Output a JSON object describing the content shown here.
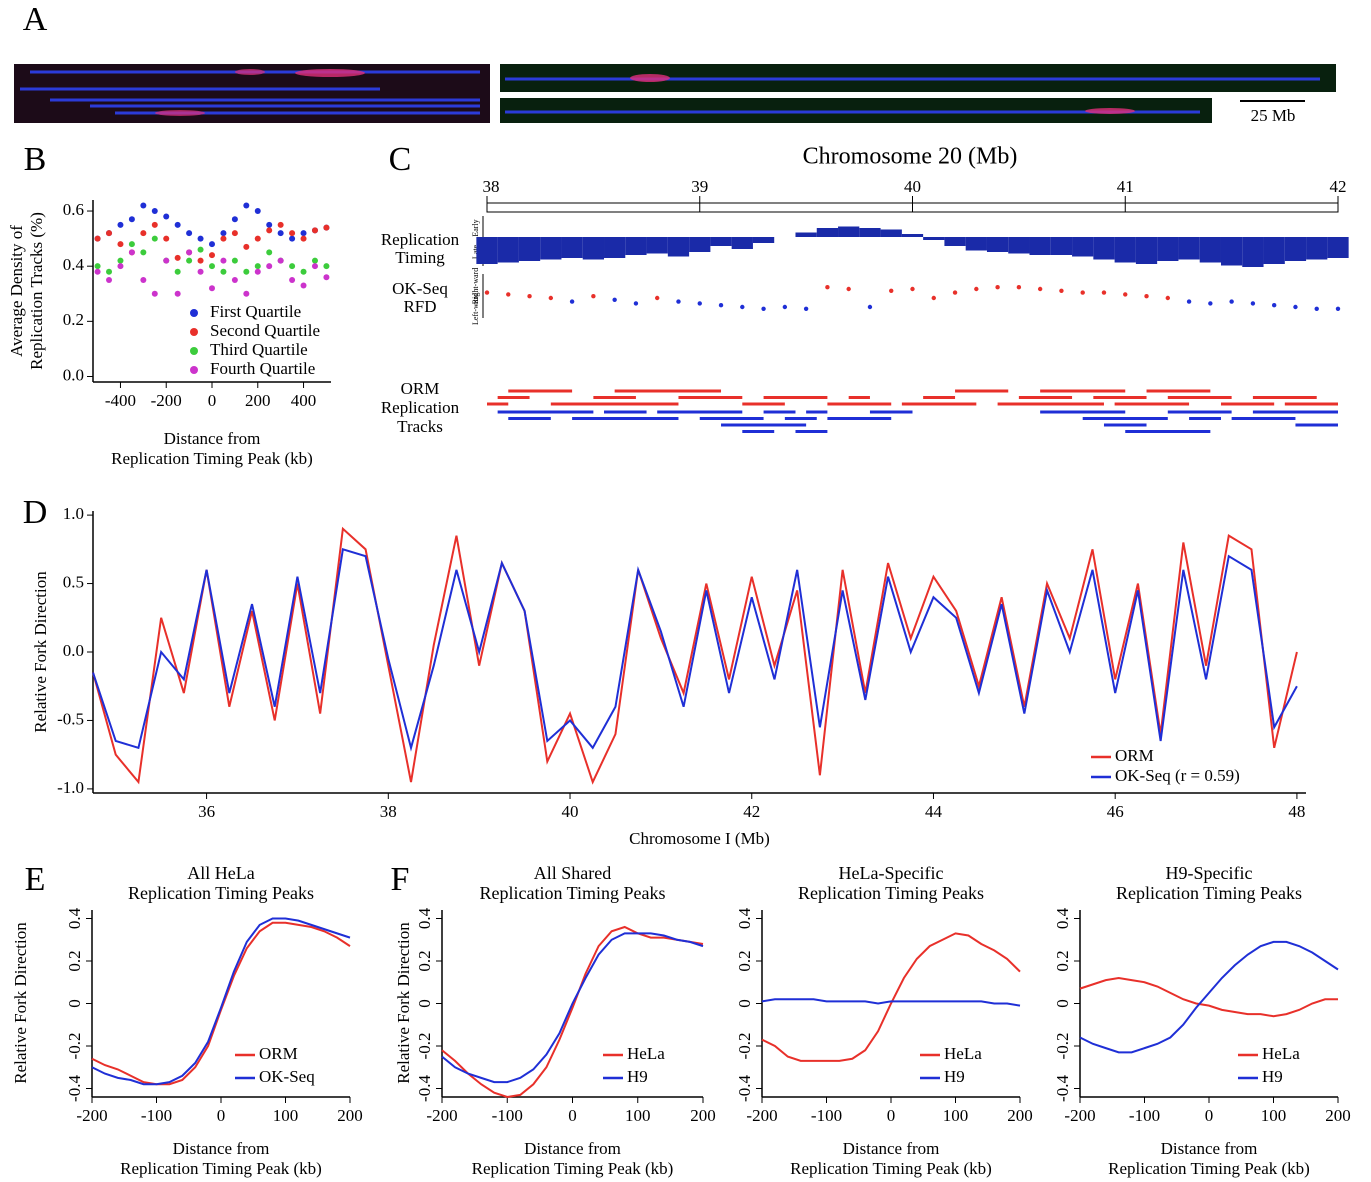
{
  "chart_data": [
    {
      "type": "image",
      "panel": "A",
      "scale_label": "25 Mb"
    },
    {
      "type": "scatter",
      "panel": "B",
      "ylabel": [
        "Average Density of",
        "Replication Tracks (%)"
      ],
      "xlabel": [
        "Distance from",
        "Replication Timing Peak (kb)"
      ],
      "x": [
        -500,
        -450,
        -400,
        -350,
        -300,
        -250,
        -200,
        -150,
        -100,
        -50,
        0,
        50,
        100,
        150,
        200,
        250,
        300,
        350,
        400,
        450,
        500
      ],
      "series": [
        {
          "name": "First Quartile",
          "color": "#1f2fd6",
          "values": [
            0.5,
            0.52,
            0.55,
            0.57,
            0.62,
            0.6,
            0.58,
            0.55,
            0.52,
            0.5,
            0.48,
            0.52,
            0.57,
            0.62,
            0.6,
            0.55,
            0.52,
            0.5,
            0.52,
            0.53,
            0.54
          ]
        },
        {
          "name": "Second Quartile",
          "color": "#e8302a",
          "values": [
            0.5,
            0.52,
            0.48,
            0.45,
            0.52,
            0.55,
            0.5,
            0.43,
            0.45,
            0.42,
            0.44,
            0.5,
            0.52,
            0.47,
            0.5,
            0.53,
            0.55,
            0.52,
            0.5,
            0.53,
            0.54
          ]
        },
        {
          "name": "Third Quartile",
          "color": "#3ccc3c",
          "values": [
            0.4,
            0.38,
            0.42,
            0.48,
            0.45,
            0.5,
            0.42,
            0.38,
            0.42,
            0.46,
            0.4,
            0.38,
            0.42,
            0.38,
            0.4,
            0.45,
            0.42,
            0.4,
            0.38,
            0.42,
            0.4
          ]
        },
        {
          "name": "Fourth Quartile",
          "color": "#cc33cc",
          "values": [
            0.38,
            0.35,
            0.4,
            0.45,
            0.35,
            0.3,
            0.42,
            0.3,
            0.45,
            0.38,
            0.32,
            0.42,
            0.35,
            0.3,
            0.38,
            0.4,
            0.42,
            0.35,
            0.33,
            0.4,
            0.36
          ]
        }
      ],
      "xlim": [
        -520,
        520
      ],
      "ylim": [
        -0.02,
        0.64
      ],
      "xticks": [
        -400,
        -200,
        0,
        200,
        400
      ],
      "yticks": [
        {
          "value": 0,
          "label": "0.0"
        },
        0.2,
        0.4,
        0.6
      ],
      "legend": "lower right"
    },
    {
      "type": "tracks",
      "panel": "C",
      "title": "Chromosome 20 (Mb)",
      "xlim": [
        38,
        42
      ],
      "xticks": [
        38,
        39,
        40,
        41,
        42
      ],
      "timing_label": [
        "Replication",
        "Timing"
      ],
      "timing_axis": [
        "Late",
        "Early"
      ],
      "rfd_label": [
        "OK-Seq",
        "RFD"
      ],
      "rfd_axis": [
        "Left-ward",
        "Right-ward"
      ],
      "orm_label": [
        "ORM",
        "Replication",
        "Tracks"
      ],
      "rightward_color": "#e8302a",
      "leftward_color": "#1f2fd6",
      "timing_color": "#1a2aa8",
      "x": [
        38,
        38.1,
        38.2,
        38.3,
        38.4,
        38.5,
        38.6,
        38.7,
        38.8,
        38.9,
        39,
        39.1,
        39.2,
        39.3,
        39.4,
        39.5,
        39.6,
        39.7,
        39.8,
        39.9,
        40,
        40.1,
        40.2,
        40.3,
        40.4,
        40.5,
        40.6,
        40.7,
        40.8,
        40.9,
        41,
        41.1,
        41.2,
        41.3,
        41.4,
        41.5,
        41.6,
        41.7,
        41.8,
        41.9,
        42
      ],
      "timing": [
        -0.9,
        -0.85,
        -0.8,
        -0.75,
        -0.7,
        -0.75,
        -0.7,
        -0.6,
        -0.55,
        -0.65,
        -0.5,
        -0.3,
        -0.4,
        -0.2,
        0.0,
        0.15,
        0.3,
        0.35,
        0.3,
        0.25,
        0.1,
        -0.1,
        -0.3,
        -0.45,
        -0.5,
        -0.55,
        -0.6,
        -0.6,
        -0.65,
        -0.75,
        -0.85,
        -0.9,
        -0.8,
        -0.75,
        -0.85,
        -0.95,
        -1.0,
        -0.9,
        -0.8,
        -0.75,
        -0.7
      ],
      "rfd": [
        0.3,
        0.2,
        0.1,
        0.0,
        -0.2,
        0.1,
        -0.1,
        -0.3,
        0.0,
        -0.2,
        -0.3,
        -0.4,
        -0.5,
        -0.6,
        -0.5,
        -0.6,
        0.6,
        0.5,
        -0.5,
        0.4,
        0.5,
        0.0,
        0.3,
        0.5,
        0.6,
        0.6,
        0.5,
        0.4,
        0.3,
        0.3,
        0.2,
        0.1,
        0.0,
        -0.2,
        -0.3,
        -0.2,
        -0.3,
        -0.4,
        -0.5,
        -0.6,
        -0.6
      ],
      "rightward": [
        [
          38.0,
          38.1
        ],
        [
          38.05,
          38.2
        ],
        [
          38.1,
          38.4
        ],
        [
          38.3,
          38.9
        ],
        [
          38.5,
          38.7
        ],
        [
          38.6,
          39.1
        ],
        [
          38.9,
          39.2
        ],
        [
          39.2,
          39.4
        ],
        [
          39.3,
          39.6
        ],
        [
          39.6,
          39.9
        ],
        [
          39.7,
          39.8
        ],
        [
          39.95,
          40.3
        ],
        [
          40.05,
          40.2
        ],
        [
          40.2,
          40.45
        ],
        [
          40.4,
          40.9
        ],
        [
          40.5,
          40.75
        ],
        [
          40.6,
          41.0
        ],
        [
          40.85,
          41.1
        ],
        [
          40.95,
          41.3
        ],
        [
          41.1,
          41.4
        ],
        [
          41.2,
          41.5
        ],
        [
          41.45,
          41.7
        ],
        [
          41.6,
          41.9
        ],
        [
          41.75,
          42.0
        ]
      ],
      "leftward": [
        [
          38.05,
          38.5
        ],
        [
          38.1,
          38.3
        ],
        [
          38.4,
          38.9
        ],
        [
          38.55,
          38.75
        ],
        [
          38.8,
          39.2
        ],
        [
          39.0,
          39.3
        ],
        [
          39.1,
          39.5
        ],
        [
          39.2,
          39.35
        ],
        [
          39.3,
          39.45
        ],
        [
          39.4,
          39.55
        ],
        [
          39.45,
          39.6
        ],
        [
          39.5,
          39.6
        ],
        [
          39.6,
          39.9
        ],
        [
          39.8,
          40.0
        ],
        [
          40.6,
          41.0
        ],
        [
          40.8,
          41.2
        ],
        [
          40.9,
          41.1
        ],
        [
          41.0,
          41.4
        ],
        [
          41.2,
          41.5
        ],
        [
          41.3,
          41.45
        ],
        [
          41.5,
          41.8
        ],
        [
          41.6,
          42.0
        ],
        [
          41.8,
          42.0
        ]
      ]
    },
    {
      "type": "line",
      "panel": "D",
      "ylabel": [
        "Relative Fork Direction"
      ],
      "xlabel": [
        "Chromosome I (Mb)"
      ],
      "x": [
        34.75,
        35,
        35.25,
        35.5,
        35.75,
        36,
        36.25,
        36.5,
        36.75,
        37,
        37.25,
        37.5,
        37.75,
        38,
        38.25,
        38.5,
        38.75,
        39,
        39.25,
        39.5,
        39.75,
        40,
        40.25,
        40.5,
        40.75,
        41,
        41.25,
        41.5,
        41.75,
        42,
        42.25,
        42.5,
        42.75,
        43,
        43.25,
        43.5,
        43.75,
        44,
        44.25,
        44.5,
        44.75,
        45,
        45.25,
        45.5,
        45.75,
        46,
        46.25,
        46.5,
        46.75,
        47,
        47.25,
        47.5,
        47.75,
        48
      ],
      "series": [
        {
          "name": "ORM",
          "color": "#e8302a",
          "values": [
            -0.15,
            -0.75,
            -0.95,
            0.25,
            -0.3,
            0.6,
            -0.4,
            0.3,
            -0.5,
            0.5,
            -0.45,
            0.9,
            0.75,
            -0.1,
            -0.95,
            0.05,
            0.85,
            -0.1,
            0.65,
            0.3,
            -0.8,
            -0.45,
            -0.95,
            -0.6,
            0.6,
            0.1,
            -0.3,
            0.5,
            -0.2,
            0.55,
            -0.1,
            0.45,
            -0.9,
            0.6,
            -0.3,
            0.65,
            0.1,
            0.55,
            0.3,
            -0.25,
            0.4,
            -0.4,
            0.5,
            0.1,
            0.75,
            -0.2,
            0.5,
            -0.6,
            0.8,
            -0.1,
            0.85,
            0.75,
            -0.7,
            0.0
          ]
        },
        {
          "name": "OK-Seq (r = 0.59)",
          "color": "#1f2fd6",
          "values": [
            -0.15,
            -0.65,
            -0.7,
            0.0,
            -0.2,
            0.6,
            -0.3,
            0.35,
            -0.4,
            0.55,
            -0.3,
            0.75,
            0.7,
            -0.05,
            -0.7,
            -0.1,
            0.6,
            0.0,
            0.65,
            0.3,
            -0.65,
            -0.5,
            -0.7,
            -0.4,
            0.6,
            0.15,
            -0.4,
            0.45,
            -0.3,
            0.4,
            -0.2,
            0.6,
            -0.55,
            0.45,
            -0.35,
            0.55,
            0.0,
            0.4,
            0.25,
            -0.3,
            0.35,
            -0.45,
            0.45,
            0.0,
            0.6,
            -0.3,
            0.45,
            -0.65,
            0.6,
            -0.2,
            0.7,
            0.6,
            -0.55,
            -0.25
          ]
        }
      ],
      "xlim": [
        34.75,
        48.1
      ],
      "ylim": [
        -1.03,
        1.03
      ],
      "xticks": [
        36,
        38,
        40,
        42,
        44,
        46,
        48
      ],
      "yticks": [
        {
          "value": -1,
          "label": "-1.0"
        },
        -0.5,
        {
          "value": 0,
          "label": "0.0"
        },
        0.5,
        {
          "value": 1,
          "label": "1.0"
        }
      ],
      "legend": "lower right"
    },
    {
      "type": "line",
      "panel": "E",
      "title": [
        "All HeLa",
        "Replication Timing Peaks"
      ],
      "ylabel": [
        "Relative Fork Direction"
      ],
      "xlabel": [
        "Distance from",
        "Replication Timing Peak (kb)"
      ],
      "x": [
        -200,
        -180,
        -160,
        -140,
        -120,
        -100,
        -80,
        -60,
        -40,
        -20,
        0,
        20,
        40,
        60,
        80,
        100,
        120,
        140,
        160,
        180,
        200
      ],
      "series": [
        {
          "name": "ORM",
          "color": "#e8302a",
          "values": [
            -0.26,
            -0.29,
            -0.31,
            -0.34,
            -0.37,
            -0.38,
            -0.38,
            -0.36,
            -0.3,
            -0.2,
            -0.03,
            0.13,
            0.26,
            0.34,
            0.38,
            0.38,
            0.37,
            0.36,
            0.34,
            0.31,
            0.27
          ]
        },
        {
          "name": "OK-Seq",
          "color": "#1f2fd6",
          "values": [
            -0.3,
            -0.33,
            -0.35,
            -0.36,
            -0.38,
            -0.38,
            -0.37,
            -0.34,
            -0.28,
            -0.18,
            -0.02,
            0.15,
            0.29,
            0.37,
            0.4,
            0.4,
            0.39,
            0.37,
            0.35,
            0.33,
            0.31
          ]
        }
      ],
      "xlim": [
        -200,
        200
      ],
      "ylim": [
        -0.44,
        0.44
      ],
      "xticks": [
        -200,
        -100,
        0,
        100,
        200
      ],
      "yticks": [
        -0.4,
        -0.2,
        0,
        0.2,
        0.4
      ],
      "ytick_labels_rotated": true,
      "legend": "lower right"
    },
    {
      "type": "line",
      "panel": "F",
      "title": [
        "All Shared",
        "Replication Timing Peaks"
      ],
      "ylabel": [
        "Relative Fork Direction"
      ],
      "xlabel": [
        "Distance from",
        "Replication Timing Peak (kb)"
      ],
      "x": [
        -200,
        -180,
        -160,
        -140,
        -120,
        -100,
        -80,
        -60,
        -40,
        -20,
        0,
        20,
        40,
        60,
        80,
        100,
        120,
        140,
        160,
        180,
        200
      ],
      "series": [
        {
          "name": "HeLa",
          "color": "#e8302a",
          "values": [
            -0.22,
            -0.27,
            -0.33,
            -0.38,
            -0.42,
            -0.44,
            -0.43,
            -0.38,
            -0.3,
            -0.17,
            -0.02,
            0.14,
            0.27,
            0.34,
            0.36,
            0.33,
            0.31,
            0.31,
            0.3,
            0.29,
            0.28
          ]
        },
        {
          "name": "H9",
          "color": "#1f2fd6",
          "values": [
            -0.25,
            -0.3,
            -0.33,
            -0.35,
            -0.37,
            -0.37,
            -0.35,
            -0.31,
            -0.24,
            -0.14,
            0.0,
            0.12,
            0.23,
            0.3,
            0.33,
            0.33,
            0.33,
            0.32,
            0.3,
            0.29,
            0.27
          ]
        }
      ],
      "xlim": [
        -200,
        200
      ],
      "ylim": [
        -0.44,
        0.44
      ],
      "xticks": [
        -200,
        -100,
        0,
        100,
        200
      ],
      "yticks": [
        -0.4,
        -0.2,
        0,
        0.2,
        0.4
      ],
      "ytick_labels_rotated": true,
      "legend": "lower right"
    },
    {
      "type": "line",
      "title": [
        "HeLa-Specific",
        "Replication Timing Peaks"
      ],
      "xlabel": [
        "Distance from",
        "Replication Timing Peak (kb)"
      ],
      "x": [
        -200,
        -180,
        -160,
        -140,
        -120,
        -100,
        -80,
        -60,
        -40,
        -20,
        0,
        20,
        40,
        60,
        80,
        100,
        120,
        140,
        160,
        180,
        200
      ],
      "series": [
        {
          "name": "HeLa",
          "color": "#e8302a",
          "values": [
            -0.17,
            -0.2,
            -0.25,
            -0.27,
            -0.27,
            -0.27,
            -0.27,
            -0.26,
            -0.22,
            -0.13,
            0.0,
            0.12,
            0.21,
            0.27,
            0.3,
            0.33,
            0.32,
            0.28,
            0.25,
            0.21,
            0.15
          ]
        },
        {
          "name": "H9",
          "color": "#1f2fd6",
          "values": [
            0.01,
            0.02,
            0.02,
            0.02,
            0.02,
            0.01,
            0.01,
            0.01,
            0.01,
            0.0,
            0.01,
            0.01,
            0.01,
            0.01,
            0.01,
            0.01,
            0.01,
            0.01,
            0.0,
            0.0,
            -0.01
          ]
        }
      ],
      "xlim": [
        -200,
        200
      ],
      "ylim": [
        -0.44,
        0.44
      ],
      "xticks": [
        -200,
        -100,
        0,
        100,
        200
      ],
      "yticks": [
        -0.4,
        -0.2,
        0,
        0.2,
        0.4
      ],
      "ytick_labels_rotated": true,
      "legend": "lower right"
    },
    {
      "type": "line",
      "title": [
        "H9-Specific",
        "Replication Timing Peaks"
      ],
      "xlabel": [
        "Distance from",
        "Replication Timing Peak (kb)"
      ],
      "x": [
        -200,
        -180,
        -160,
        -140,
        -120,
        -100,
        -80,
        -60,
        -40,
        -20,
        0,
        20,
        40,
        60,
        80,
        100,
        120,
        140,
        160,
        180,
        200
      ],
      "series": [
        {
          "name": "HeLa",
          "color": "#e8302a",
          "values": [
            0.07,
            0.09,
            0.11,
            0.12,
            0.11,
            0.1,
            0.08,
            0.05,
            0.02,
            0.0,
            -0.01,
            -0.03,
            -0.04,
            -0.05,
            -0.05,
            -0.06,
            -0.05,
            -0.03,
            0.0,
            0.02,
            0.02
          ]
        },
        {
          "name": "H9",
          "color": "#1f2fd6",
          "values": [
            -0.16,
            -0.19,
            -0.21,
            -0.23,
            -0.23,
            -0.21,
            -0.19,
            -0.16,
            -0.1,
            -0.02,
            0.05,
            0.12,
            0.18,
            0.23,
            0.27,
            0.29,
            0.29,
            0.27,
            0.24,
            0.2,
            0.16
          ]
        }
      ],
      "xlim": [
        -200,
        200
      ],
      "ylim": [
        -0.44,
        0.44
      ],
      "xticks": [
        -200,
        -100,
        0,
        100,
        200
      ],
      "yticks": [
        -0.4,
        -0.2,
        0,
        0.2,
        0.4
      ],
      "ytick_labels_rotated": true,
      "legend": "lower right"
    }
  ]
}
